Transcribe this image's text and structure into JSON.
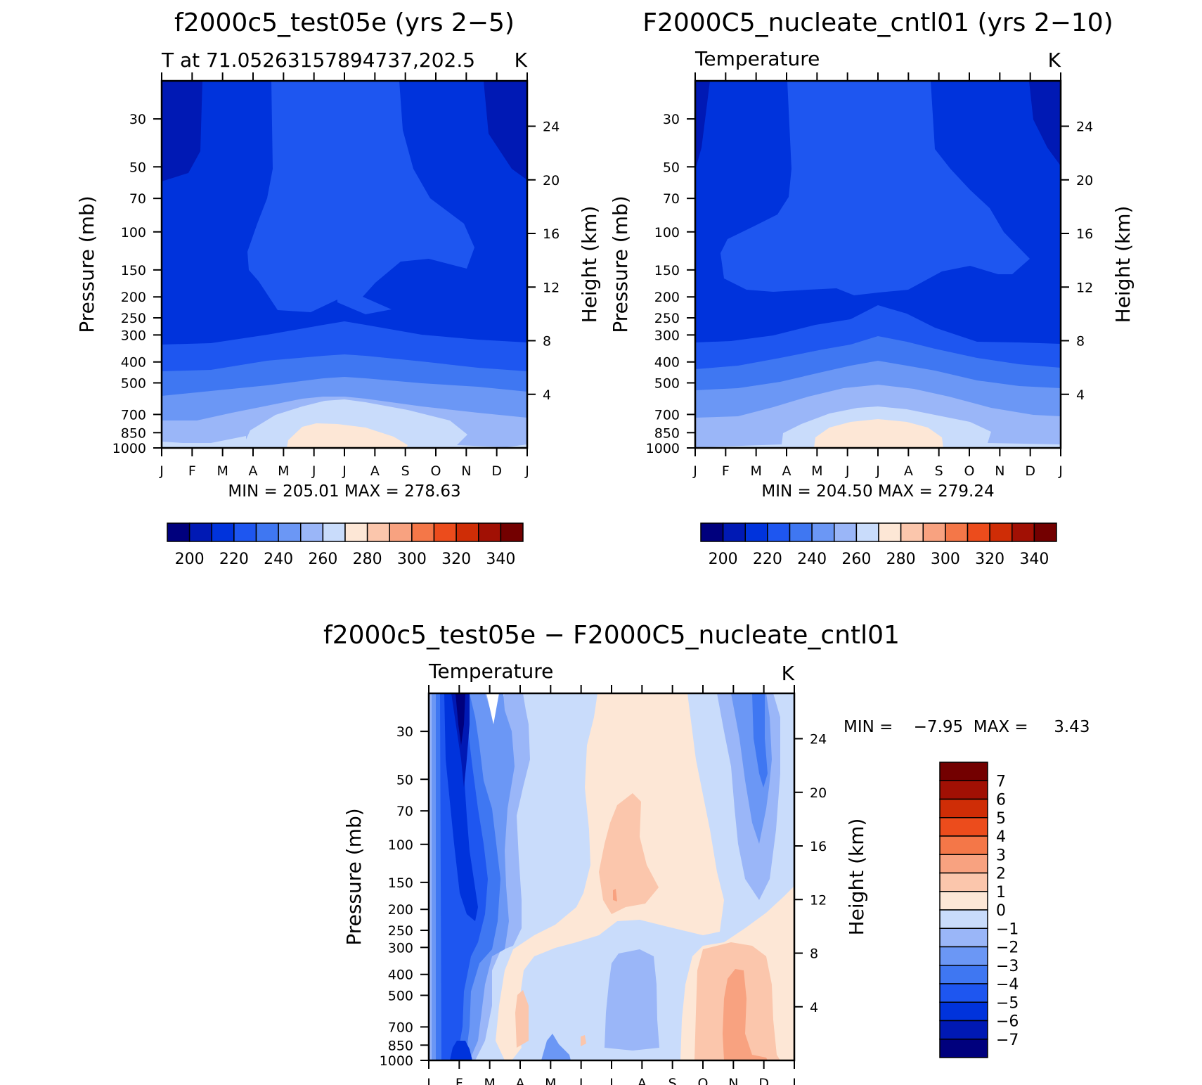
{
  "chart_data": [
    {
      "type": "contour",
      "title": "f2000c5_test05e (yrs 2−5)",
      "subtitle_left": "T at 71.05263157894737,202.5",
      "subtitle_right": "K",
      "variable": "T",
      "units": "K",
      "xlabel": "",
      "ylabel": "Pressure (mb)",
      "ylabel_right": "Height (km)",
      "months": [
        "J",
        "F",
        "M",
        "A",
        "M",
        "J",
        "J",
        "A",
        "S",
        "O",
        "N",
        "D",
        "J"
      ],
      "pressure_ticks": [
        30,
        50,
        70,
        100,
        150,
        200,
        250,
        300,
        400,
        500,
        700,
        850,
        1000
      ],
      "height_ticks": [
        24,
        20,
        16,
        12,
        8,
        4
      ],
      "min": "205.01",
      "max": "278.63",
      "stats_text": "MIN = 205.01 MAX = 278.63",
      "colorbar_levels": [
        200,
        210,
        220,
        230,
        240,
        250,
        260,
        270,
        280,
        290,
        300,
        310,
        320,
        330,
        340
      ],
      "colorbar_labels": [
        "200",
        "220",
        "240",
        "260",
        "280",
        "300",
        "320",
        "340"
      ]
    },
    {
      "type": "contour",
      "title": "F2000C5_nucleate_cntl01 (yrs 2−10)",
      "subtitle_left": "Temperature",
      "subtitle_right": "K",
      "variable": "Temperature",
      "units": "K",
      "ylabel": "Pressure (mb)",
      "ylabel_right": "Height (km)",
      "months": [
        "J",
        "F",
        "M",
        "A",
        "M",
        "J",
        "J",
        "A",
        "S",
        "O",
        "N",
        "D",
        "J"
      ],
      "pressure_ticks": [
        30,
        50,
        70,
        100,
        150,
        200,
        250,
        300,
        400,
        500,
        700,
        850,
        1000
      ],
      "height_ticks": [
        24,
        20,
        16,
        12,
        8,
        4
      ],
      "min": "204.50",
      "max": "279.24",
      "stats_text": "MIN = 204.50 MAX = 279.24",
      "colorbar_levels": [
        200,
        210,
        220,
        230,
        240,
        250,
        260,
        270,
        280,
        290,
        300,
        310,
        320,
        330,
        340
      ],
      "colorbar_labels": [
        "200",
        "220",
        "240",
        "260",
        "280",
        "300",
        "320",
        "340"
      ]
    },
    {
      "type": "contour",
      "title": "f2000c5_test05e − F2000C5_nucleate_cntl01",
      "subtitle_left": "Temperature",
      "subtitle_right": "K",
      "variable": "Temperature difference",
      "units": "K",
      "ylabel": "Pressure (mb)",
      "ylabel_right": "Height (km)",
      "months": [
        "J",
        "F",
        "M",
        "A",
        "M",
        "J",
        "J",
        "A",
        "S",
        "O",
        "N",
        "D",
        "J"
      ],
      "pressure_ticks": [
        30,
        50,
        70,
        100,
        150,
        200,
        250,
        300,
        400,
        500,
        700,
        850,
        1000
      ],
      "height_ticks": [
        24,
        20,
        16,
        12,
        8,
        4
      ],
      "min": "−7.95",
      "max": "3.43",
      "stats_text": "MIN =    −7.95  MAX =     3.43",
      "colorbar_levels": [
        7,
        6,
        5,
        4,
        3,
        2,
        1,
        0,
        -1,
        -2,
        -3,
        -4,
        -5,
        -6,
        -7
      ],
      "colorbar_labels": [
        "7",
        "6",
        "5",
        "4",
        "3",
        "2",
        "1",
        "0",
        "−1",
        "−2",
        "−3",
        "−4",
        "−5",
        "−6",
        "−7"
      ]
    }
  ],
  "colors": {
    "levels_abs": [
      "#00007d",
      "#0019b4",
      "#0033dc",
      "#1e56f0",
      "#3f77f2",
      "#6b97f5",
      "#9ab6f8",
      "#c9dcfb",
      "#fde7d6",
      "#fbc6ac",
      "#f8a280",
      "#f47748",
      "#ec4c1c",
      "#cf2d06",
      "#a11004",
      "#730000"
    ],
    "levels_diff": [
      "#00007d",
      "#0019b4",
      "#0033dc",
      "#1e56f0",
      "#3f77f2",
      "#6b97f5",
      "#9ab6f8",
      "#c9dcfb",
      "#fde7d6",
      "#fbc6ac",
      "#f8a280",
      "#f47748",
      "#ec4c1c",
      "#cf2d06",
      "#a11004",
      "#730000"
    ]
  }
}
